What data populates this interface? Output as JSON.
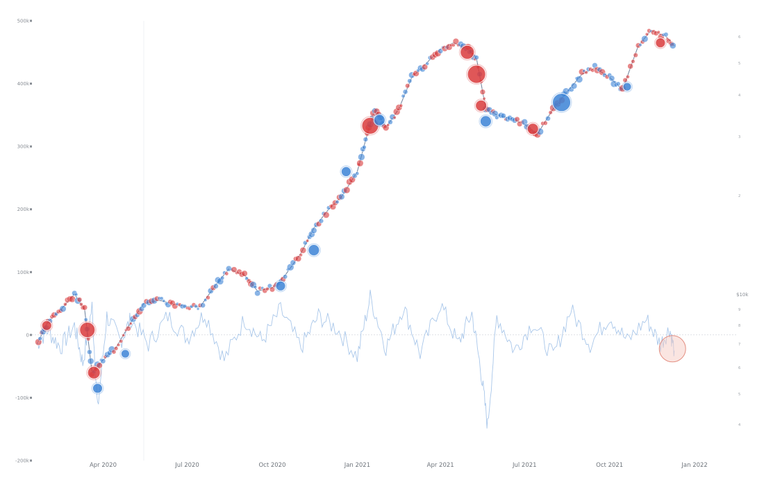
{
  "chart_data": {
    "type": "scatter",
    "title": "",
    "xlabel": "",
    "ylabel": "",
    "x_ticks": [
      "Apr 2020",
      "Jul 2020",
      "Oct 2020",
      "Jan 2021",
      "Apr 2021",
      "Jul 2021",
      "Oct 2021",
      "Jan 2022"
    ],
    "y_ticks": [
      "500k",
      "400k",
      "300k",
      "200k",
      "100k",
      "0",
      "-100k",
      "-200k"
    ],
    "ylim": [
      -200000,
      500000
    ],
    "right_upper_ticks": [
      "6",
      "5",
      "4",
      "3",
      "2"
    ],
    "right_lower_title": "$10k",
    "right_lower_ticks": [
      "9",
      "8",
      "7",
      "6",
      "5",
      "4"
    ],
    "grid": false,
    "colors": {
      "buy": "#3b82d6",
      "sell": "#d9393b",
      "oscillator": "#a9c7ea",
      "highlight": "#f6cbc3"
    },
    "cumulative_series": {
      "name": "",
      "x": [
        "2020-01-22",
        "2020-02-01",
        "2020-02-15",
        "2020-03-01",
        "2020-03-12",
        "2020-03-20",
        "2020-04-01",
        "2020-04-15",
        "2020-05-01",
        "2020-05-15",
        "2020-06-01",
        "2020-06-15",
        "2020-07-01",
        "2020-07-15",
        "2020-08-01",
        "2020-08-15",
        "2020-09-01",
        "2020-09-15",
        "2020-10-01",
        "2020-10-15",
        "2020-11-01",
        "2020-11-15",
        "2020-12-01",
        "2020-12-15",
        "2021-01-01",
        "2021-01-10",
        "2021-01-20",
        "2021-02-01",
        "2021-02-15",
        "2021-03-01",
        "2021-03-15",
        "2021-04-01",
        "2021-04-15",
        "2021-05-01",
        "2021-05-10",
        "2021-05-20",
        "2021-06-01",
        "2021-06-15",
        "2021-07-01",
        "2021-07-15",
        "2021-08-01",
        "2021-08-15",
        "2021-09-01",
        "2021-09-15",
        "2021-10-01",
        "2021-10-15",
        "2021-11-01",
        "2021-11-15",
        "2021-12-01",
        "2021-12-10"
      ],
      "y": [
        -10000,
        20000,
        40000,
        65000,
        40000,
        -60000,
        -40000,
        -20000,
        20000,
        50000,
        55000,
        50000,
        45000,
        45000,
        80000,
        105000,
        95000,
        70000,
        75000,
        95000,
        130000,
        170000,
        200000,
        220000,
        260000,
        310000,
        360000,
        330000,
        360000,
        410000,
        430000,
        455000,
        465000,
        455000,
        440000,
        360000,
        350000,
        345000,
        335000,
        320000,
        360000,
        385000,
        415000,
        425000,
        410000,
        390000,
        460000,
        485000,
        475000,
        460000
      ]
    },
    "bubble_series": [
      {
        "name": "",
        "color": "#d9393b",
        "x": [
          "2020-01-31",
          "2020-03-15",
          "2020-03-22",
          "2021-01-15",
          "2021-04-30",
          "2021-05-10",
          "2021-05-15",
          "2021-07-10",
          "2021-11-25"
        ],
        "y": [
          15000,
          8000,
          -60000,
          333000,
          450000,
          415000,
          365000,
          328000,
          465000
        ],
        "size": [
          14,
          22,
          18,
          24,
          20,
          26,
          16,
          16,
          14
        ]
      },
      {
        "name": "",
        "color": "#3b82d6",
        "x": [
          "2020-03-26",
          "2020-04-25",
          "2020-10-10",
          "2020-11-15",
          "2020-12-20",
          "2021-01-25",
          "2021-05-20",
          "2021-08-10",
          "2021-10-20"
        ],
        "y": [
          -85000,
          -30000,
          78000,
          135000,
          260000,
          342000,
          340000,
          370000,
          395000
        ],
        "size": [
          14,
          12,
          14,
          16,
          14,
          16,
          16,
          26,
          12
        ]
      }
    ],
    "oscillator_series": {
      "name": "",
      "x": [
        "2020-01-20",
        "2020-02-01",
        "2020-02-15",
        "2020-03-01",
        "2020-03-10",
        "2020-03-20",
        "2020-03-26",
        "2020-04-05",
        "2020-04-20",
        "2020-05-01",
        "2020-05-20",
        "2020-06-10",
        "2020-07-01",
        "2020-07-20",
        "2020-08-10",
        "2020-09-01",
        "2020-09-20",
        "2020-10-10",
        "2020-11-01",
        "2020-11-20",
        "2020-12-10",
        "2021-01-01",
        "2021-01-15",
        "2021-02-01",
        "2021-02-20",
        "2021-03-10",
        "2021-04-01",
        "2021-04-20",
        "2021-05-05",
        "2021-05-15",
        "2021-05-22",
        "2021-06-01",
        "2021-06-20",
        "2021-07-10",
        "2021-08-01",
        "2021-08-20",
        "2021-09-10",
        "2021-10-01",
        "2021-10-20",
        "2021-11-10",
        "2021-11-25",
        "2021-12-05",
        "2021-12-10"
      ],
      "y": [
        -15000,
        8000,
        -20000,
        15000,
        -45000,
        45000,
        -120000,
        30000,
        -10000,
        25000,
        -15000,
        30000,
        -5000,
        35000,
        -40000,
        25000,
        -10000,
        40000,
        -20000,
        30000,
        10000,
        -35000,
        60000,
        -20000,
        45000,
        -30000,
        50000,
        -15000,
        35000,
        -60000,
        -145000,
        30000,
        -25000,
        20000,
        -35000,
        40000,
        -15000,
        30000,
        -10000,
        25000,
        -15000,
        10000,
        -25000
      ]
    },
    "highlight": {
      "x": "2021-12-08",
      "y": -22000
    }
  }
}
